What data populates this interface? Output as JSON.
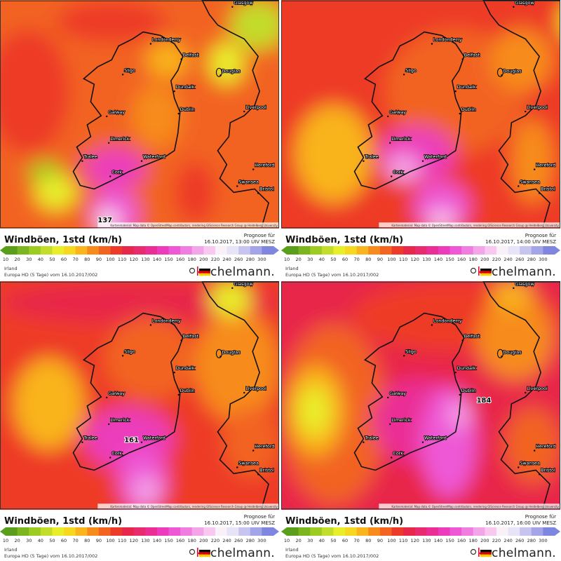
{
  "title": "Windböen, 1std (km/h)",
  "forecast_label": "Prognose für",
  "region": "Irland",
  "model": "Europa HD (5 Tage) vom 16.10.2017/002",
  "brand": "kachelmann.",
  "credit": "Kartenmaterial: Map data © OpenStreetMap contributors, rendering GIScience Research Group @ Heidelberg University",
  "cities": [
    "Glasgow",
    "Londonderry",
    "Belfast",
    "Sligo",
    "Dundalk",
    "Douglas",
    "Galway",
    "Dublin",
    "Liverpool",
    "Limerick",
    "Tralee",
    "Waterford",
    "Cork",
    "Swansea",
    "Bristol",
    "Hereford"
  ],
  "legend": [
    {
      "value": 10,
      "color": "#5a9e1c"
    },
    {
      "value": 20,
      "color": "#7bb51f"
    },
    {
      "value": 30,
      "color": "#9ccc22"
    },
    {
      "value": 40,
      "color": "#c2dd2a"
    },
    {
      "value": 50,
      "color": "#e8ef2a"
    },
    {
      "value": 60,
      "color": "#f7d820"
    },
    {
      "value": 70,
      "color": "#f9b41e"
    },
    {
      "value": 80,
      "color": "#f78c1c"
    },
    {
      "value": 90,
      "color": "#f26420"
    },
    {
      "value": 100,
      "color": "#ee3a28"
    },
    {
      "value": 110,
      "color": "#e8284a"
    },
    {
      "value": 120,
      "color": "#e82a6e"
    },
    {
      "value": 130,
      "color": "#ea2e96"
    },
    {
      "value": 140,
      "color": "#ec3cbc"
    },
    {
      "value": 150,
      "color": "#ee58d6"
    },
    {
      "value": 160,
      "color": "#f07ee0"
    },
    {
      "value": 180,
      "color": "#f4a4e8"
    },
    {
      "value": 200,
      "color": "#f8c8f0"
    },
    {
      "value": 220,
      "color": "#faf0f8"
    },
    {
      "value": 240,
      "color": "#e8e4f8"
    },
    {
      "value": 260,
      "color": "#c8c4f0"
    },
    {
      "value": 280,
      "color": "#a4a4e8"
    },
    {
      "value": 300,
      "color": "#7e86e0"
    }
  ],
  "panels": [
    {
      "valid": "16.10.2017, 13:00 UIV MESZ",
      "peak": "137"
    },
    {
      "valid": "16.10.2017, 14:00 UIV MESZ"
    },
    {
      "valid": "16.10.2017, 15:00 UIV MESZ",
      "peak": "161"
    },
    {
      "valid": "16.10.2017, 16:00 UIV MESZ",
      "peak": "184"
    }
  ]
}
